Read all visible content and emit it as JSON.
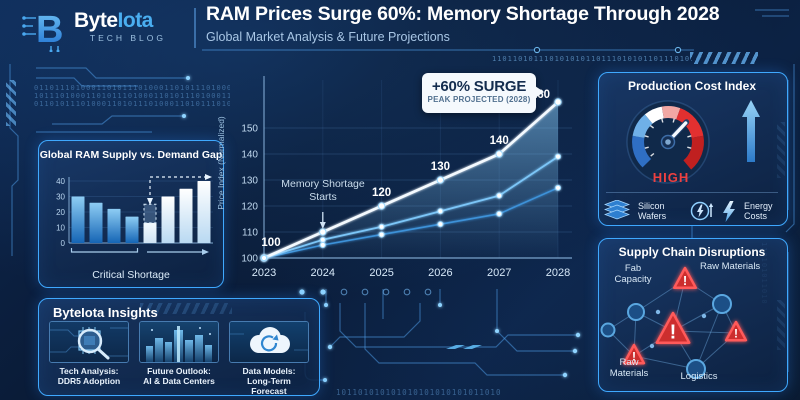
{
  "header": {
    "brand_byte": "Byte",
    "brand_iota": "Iota",
    "tagline": "TECH BLOG",
    "title": "RAM Prices Surge 60%: Memory Shortage Through 2028",
    "subtitle": "Global Market Analysis & Future Projections"
  },
  "colors": {
    "accent": "#3fa9ff",
    "accent_bright": "#7fd0ff",
    "alert_red": "#e23b3b",
    "callout_bg": "#f5f9fd",
    "callout_text": "#132c4e",
    "background_deep": "#0a1a33"
  },
  "chart_data": [
    {
      "id": "ram_supply_demand",
      "type": "bar",
      "title": "Global RAM Supply vs. Demand Gap",
      "values": [
        30,
        26,
        22,
        17,
        25,
        30,
        35,
        40
      ],
      "bar_groups": [
        {
          "name": "supply-declining",
          "indexes": [
            0,
            1,
            2,
            3
          ]
        },
        {
          "name": "demand-rising",
          "indexes": [
            4,
            5,
            6,
            7
          ]
        }
      ],
      "split_bar": {
        "index": 4,
        "solid_value": 13,
        "note": "dashed section = projected gap"
      },
      "ylim": [
        0,
        40
      ],
      "yticks": [
        0,
        10,
        20,
        30,
        40
      ],
      "annotation": "Critical Shortage"
    },
    {
      "id": "price_index",
      "type": "line",
      "x": [
        "2023",
        "2024",
        "2025",
        "2026",
        "2027",
        "2028"
      ],
      "ylabel": "Price Index (Normalized)",
      "ylim": [
        100,
        160
      ],
      "yticks": [
        100,
        110,
        120,
        130,
        140,
        150
      ],
      "series": [
        {
          "name": "price-index-projection",
          "values": [
            100,
            110,
            120,
            130,
            140,
            160
          ],
          "point_labels": [
            "100",
            "",
            "120",
            "130",
            "140",
            "160"
          ]
        },
        {
          "name": "mid-scenario",
          "values": [
            100,
            107,
            112,
            118,
            124,
            139
          ],
          "point_labels": []
        },
        {
          "name": "low-scenario",
          "values": [
            100,
            105,
            109,
            113,
            117,
            127
          ],
          "point_labels": []
        }
      ],
      "annotations": [
        {
          "text": "Memory Shortage Starts",
          "x": "2024"
        },
        {
          "title": "+60% SURGE",
          "sub": "PEAK PROJECTED (2028)",
          "x": "2028"
        }
      ]
    }
  ],
  "production": {
    "title": "Production Cost Index",
    "gauge_level": "HIGH",
    "factors": [
      "Silicon Wafers",
      "Energy Costs"
    ]
  },
  "supply_chain": {
    "title": "Supply Chain Disruptions",
    "node_labels": {
      "fab": "Fab Capacity",
      "raw_top": "Raw Materials",
      "raw_bottom": "Raw Materials",
      "logistics": "Logistics"
    }
  },
  "insights": {
    "title": "ByteIota Insights",
    "cards": [
      {
        "icon": "chip-magnifier",
        "line1": "Tech Analysis:",
        "line2": "DDR5 Adoption"
      },
      {
        "icon": "city-skyline",
        "line1": "Future Outlook:",
        "line2": "AI & Data Centers"
      },
      {
        "icon": "cloud-sync",
        "line1": "Data Models:",
        "line2": "Long-Term Forecast"
      }
    ]
  },
  "decor": {
    "binary_rows": [
      "0110111010001101011101000110101110100011",
      "1011101000110101110100011010111010001101",
      "0110101110100011010111010001101011101000"
    ],
    "binary_top_right": "11011010111010101011011101010110111010110101",
    "binary_bottom": "101101010101010101010101011010",
    "binary_side": "110101011010"
  }
}
